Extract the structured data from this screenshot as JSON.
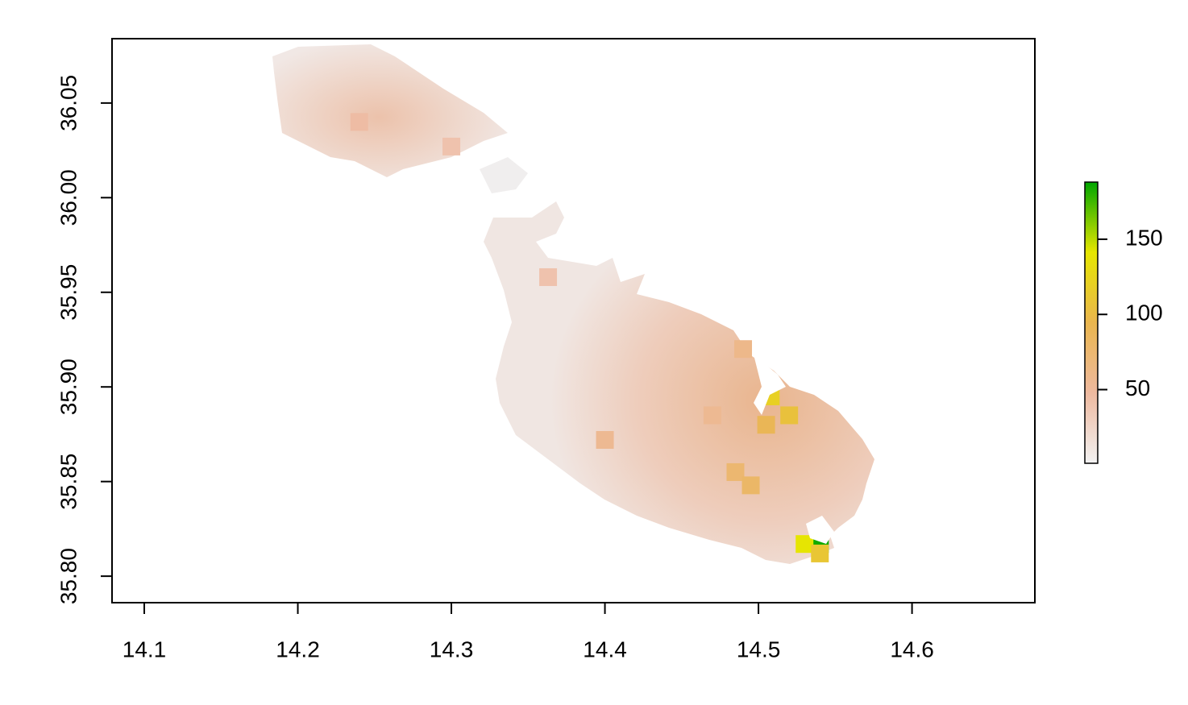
{
  "chart_data": {
    "type": "raster",
    "xlim": [
      14.079,
      14.68
    ],
    "ylim": [
      35.786,
      36.084
    ],
    "xticks": [
      14.1,
      14.2,
      14.3,
      14.4,
      14.5,
      14.6
    ],
    "yticks": [
      {
        "value": 35.8,
        "label": "35.80"
      },
      35.85,
      {
        "value": 35.9,
        "label": "35.90"
      },
      35.95,
      {
        "value": 36.0,
        "label": "36.00"
      },
      36.05
    ],
    "colorbar": {
      "lim": [
        1,
        188
      ],
      "ticks": [
        50,
        100,
        150
      ],
      "colors": [
        "#F2F2F2",
        "#EEB99F",
        "#EAB64E",
        "#E6E600",
        "#00A600"
      ]
    },
    "cells": [
      {
        "lon": 14.24,
        "lat": 36.04,
        "value": 45
      },
      {
        "lon": 14.3,
        "lat": 36.027,
        "value": 40
      },
      {
        "lon": 14.363,
        "lat": 35.958,
        "value": 40
      },
      {
        "lon": 14.4,
        "lat": 35.872,
        "value": 55
      },
      {
        "lon": 14.47,
        "lat": 35.885,
        "value": 55
      },
      {
        "lon": 14.485,
        "lat": 35.855,
        "value": 75
      },
      {
        "lon": 14.495,
        "lat": 35.848,
        "value": 80
      },
      {
        "lon": 14.49,
        "lat": 35.92,
        "value": 60
      },
      {
        "lon": 14.505,
        "lat": 35.88,
        "value": 90
      },
      {
        "lon": 14.508,
        "lat": 35.895,
        "value": 120
      },
      {
        "lon": 14.52,
        "lat": 35.885,
        "value": 105
      },
      {
        "lon": 14.54,
        "lat": 35.817,
        "value": 185
      },
      {
        "lon": 14.53,
        "lat": 35.817,
        "value": 140
      },
      {
        "lon": 14.54,
        "lat": 35.812,
        "value": 110
      }
    ]
  }
}
